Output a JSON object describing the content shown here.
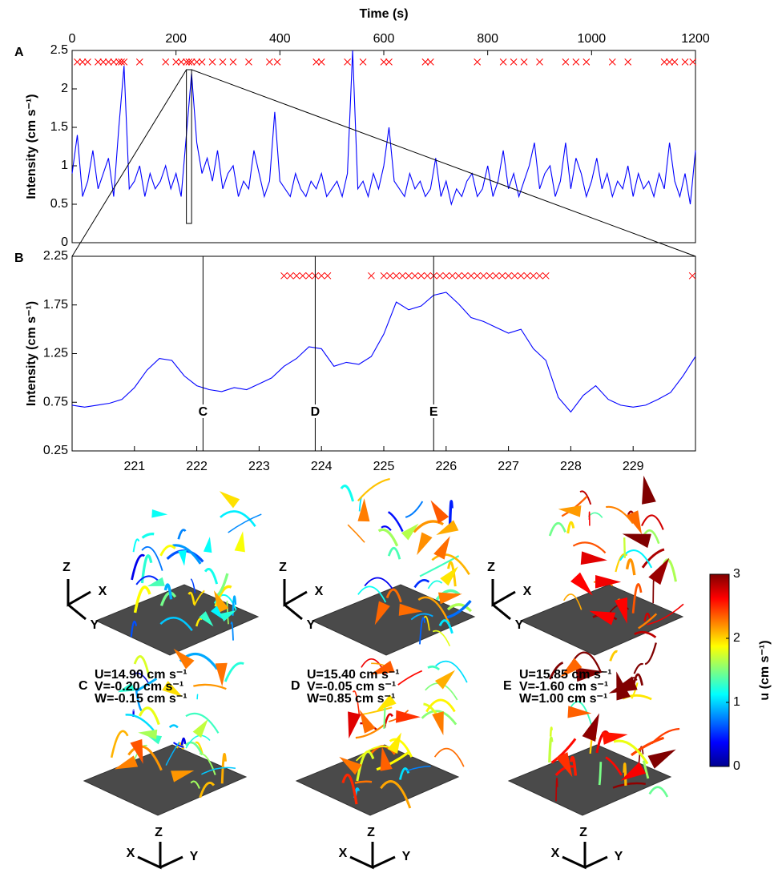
{
  "chart_data": [
    {
      "type": "line",
      "panel_label": "A",
      "xlabel": "Time (s)",
      "ylabel": "Intensity (cm s⁻¹)",
      "xlim": [
        0,
        1200
      ],
      "xticks": [
        0,
        200,
        400,
        600,
        800,
        1000,
        1200
      ],
      "ylim": [
        0,
        2.5
      ],
      "yticks": [
        0,
        0.5,
        1,
        1.5,
        2,
        2.5
      ],
      "zoom_box": {
        "x": [
          220,
          230
        ],
        "y": [
          0.25,
          2.25
        ]
      },
      "series": [
        {
          "type": "line",
          "color": "#0000ff",
          "x": [
            0,
            10,
            20,
            30,
            40,
            50,
            60,
            70,
            80,
            90,
            100,
            110,
            120,
            130,
            140,
            150,
            160,
            170,
            180,
            190,
            200,
            210,
            220,
            230,
            240,
            250,
            260,
            270,
            280,
            290,
            300,
            310,
            320,
            330,
            340,
            350,
            360,
            370,
            380,
            390,
            400,
            410,
            420,
            430,
            440,
            450,
            460,
            470,
            480,
            490,
            500,
            510,
            520,
            530,
            540,
            550,
            560,
            570,
            580,
            590,
            600,
            610,
            620,
            630,
            640,
            650,
            660,
            670,
            680,
            690,
            700,
            710,
            720,
            730,
            740,
            750,
            760,
            770,
            780,
            790,
            800,
            810,
            820,
            830,
            840,
            850,
            860,
            870,
            880,
            890,
            900,
            910,
            920,
            930,
            940,
            950,
            960,
            970,
            980,
            990,
            1000,
            1010,
            1020,
            1030,
            1040,
            1050,
            1060,
            1070,
            1080,
            1090,
            1100,
            1110,
            1120,
            1130,
            1140,
            1150,
            1160,
            1170,
            1180,
            1190,
            1200
          ],
          "values": [
            0.9,
            1.4,
            0.6,
            0.8,
            1.2,
            0.7,
            0.9,
            1.1,
            0.6,
            1.5,
            2.3,
            0.7,
            0.8,
            1.0,
            0.6,
            0.9,
            0.7,
            0.8,
            1.0,
            0.7,
            0.9,
            0.6,
            1.4,
            2.2,
            1.3,
            0.9,
            1.1,
            0.8,
            1.2,
            0.7,
            0.9,
            1.0,
            0.6,
            0.8,
            0.7,
            1.2,
            0.9,
            0.6,
            0.8,
            1.7,
            0.8,
            0.7,
            0.6,
            0.9,
            0.7,
            0.6,
            0.8,
            0.7,
            0.9,
            0.6,
            0.7,
            0.8,
            0.6,
            0.9,
            2.5,
            0.7,
            0.8,
            0.6,
            0.9,
            0.7,
            1.0,
            1.5,
            0.8,
            0.7,
            0.6,
            0.9,
            0.7,
            0.8,
            0.6,
            0.7,
            1.1,
            0.6,
            0.8,
            0.5,
            0.7,
            0.6,
            0.8,
            0.9,
            0.6,
            0.7,
            1.0,
            0.6,
            0.8,
            1.2,
            0.7,
            0.9,
            0.6,
            0.8,
            1.0,
            1.3,
            0.7,
            0.9,
            1.0,
            0.6,
            0.8,
            1.3,
            0.7,
            1.1,
            0.9,
            0.6,
            0.8,
            1.1,
            0.7,
            0.9,
            0.6,
            0.8,
            0.7,
            1.0,
            0.6,
            0.9,
            0.7,
            0.8,
            0.6,
            0.9,
            0.7,
            1.3,
            0.8,
            0.6,
            0.9,
            0.5,
            1.2
          ]
        },
        {
          "type": "scatter",
          "color": "#ff0000",
          "x": [
            10,
            20,
            30,
            50,
            60,
            70,
            80,
            90,
            95,
            100,
            130,
            180,
            200,
            210,
            220,
            225,
            230,
            240,
            250,
            270,
            290,
            310,
            340,
            380,
            395,
            470,
            480,
            530,
            560,
            600,
            610,
            680,
            690,
            780,
            830,
            850,
            870,
            900,
            950,
            970,
            990,
            1040,
            1070,
            1140,
            1150,
            1160,
            1180,
            1195
          ],
          "values": [
            2.35,
            2.35,
            2.35,
            2.35,
            2.35,
            2.35,
            2.35,
            2.35,
            2.35,
            2.35,
            2.35,
            2.35,
            2.35,
            2.35,
            2.35,
            2.35,
            2.35,
            2.35,
            2.35,
            2.35,
            2.35,
            2.35,
            2.35,
            2.35,
            2.35,
            2.35,
            2.35,
            2.35,
            2.35,
            2.35,
            2.35,
            2.35,
            2.35,
            2.35,
            2.35,
            2.35,
            2.35,
            2.35,
            2.35,
            2.35,
            2.35,
            2.35,
            2.35,
            2.35,
            2.35,
            2.35,
            2.35,
            2.35
          ]
        }
      ]
    },
    {
      "type": "line",
      "panel_label": "B",
      "ylabel": "Intensity (cm s⁻¹)",
      "xlim": [
        220,
        230
      ],
      "xticks": [
        221,
        222,
        223,
        224,
        225,
        226,
        227,
        228,
        229
      ],
      "ylim": [
        0.25,
        2.25
      ],
      "yticks": [
        0.25,
        0.75,
        1.25,
        1.75,
        2.25
      ],
      "markers": [
        {
          "label": "C",
          "x": 222.1
        },
        {
          "label": "D",
          "x": 223.9
        },
        {
          "label": "E",
          "x": 225.8
        }
      ],
      "series": [
        {
          "type": "line",
          "color": "#0000ff",
          "x": [
            220,
            220.2,
            220.4,
            220.6,
            220.8,
            221,
            221.2,
            221.4,
            221.6,
            221.8,
            222,
            222.2,
            222.4,
            222.6,
            222.8,
            223,
            223.2,
            223.4,
            223.6,
            223.8,
            224,
            224.2,
            224.4,
            224.6,
            224.8,
            225,
            225.2,
            225.4,
            225.6,
            225.8,
            226,
            226.2,
            226.4,
            226.6,
            226.8,
            227,
            227.2,
            227.4,
            227.6,
            227.8,
            228,
            228.2,
            228.4,
            228.6,
            228.8,
            229,
            229.2,
            229.4,
            229.6,
            229.8,
            230
          ],
          "values": [
            0.72,
            0.7,
            0.72,
            0.74,
            0.78,
            0.9,
            1.08,
            1.2,
            1.18,
            1.02,
            0.92,
            0.88,
            0.86,
            0.9,
            0.88,
            0.94,
            1.0,
            1.12,
            1.2,
            1.32,
            1.3,
            1.12,
            1.16,
            1.14,
            1.22,
            1.45,
            1.78,
            1.7,
            1.74,
            1.85,
            1.88,
            1.76,
            1.62,
            1.58,
            1.52,
            1.46,
            1.5,
            1.3,
            1.18,
            0.8,
            0.65,
            0.82,
            0.92,
            0.78,
            0.72,
            0.7,
            0.72,
            0.78,
            0.85,
            1.02,
            1.22
          ]
        },
        {
          "type": "scatter",
          "color": "#ff0000",
          "x": [
            223.4,
            223.5,
            223.6,
            223.7,
            223.8,
            223.9,
            224.0,
            224.1,
            224.8,
            225.0,
            225.1,
            225.2,
            225.3,
            225.4,
            225.5,
            225.6,
            225.7,
            225.8,
            225.9,
            226.0,
            226.1,
            226.2,
            226.3,
            226.4,
            226.5,
            226.6,
            226.7,
            226.8,
            226.9,
            227.0,
            227.1,
            227.2,
            227.3,
            227.4,
            227.5,
            227.6,
            229.95
          ],
          "values": [
            2.05,
            2.05,
            2.05,
            2.05,
            2.05,
            2.05,
            2.05,
            2.05,
            2.05,
            2.05,
            2.05,
            2.05,
            2.05,
            2.05,
            2.05,
            2.05,
            2.05,
            2.05,
            2.05,
            2.05,
            2.05,
            2.05,
            2.05,
            2.05,
            2.05,
            2.05,
            2.05,
            2.05,
            2.05,
            2.05,
            2.05,
            2.05,
            2.05,
            2.05,
            2.05,
            2.05,
            2.05
          ]
        }
      ]
    },
    {
      "type": "colorbar",
      "label": "u (cm s⁻¹)",
      "ylim": [
        0,
        3
      ],
      "yticks": [
        0,
        1,
        2,
        3
      ]
    }
  ],
  "figure": {
    "panels": [
      {
        "axes": {
          "z": "Z",
          "x": "X",
          "y": "Y"
        }
      },
      {
        "axes": {
          "z": "Z",
          "x": "X",
          "y": "Y"
        }
      },
      {
        "axes": {
          "z": "Z",
          "x": "X",
          "y": "Y"
        }
      },
      {
        "label": "C",
        "lines": [
          "U=14.90 cm s⁻¹",
          "V=-0.20 cm s⁻¹",
          "W=-0.15 cm s⁻¹"
        ],
        "axes": {
          "z": "Z",
          "x": "X",
          "y": "Y"
        }
      },
      {
        "label": "D",
        "lines": [
          "U=15.40 cm s⁻¹",
          "V=-0.05 cm s⁻¹",
          "W=0.85 cm s⁻¹"
        ],
        "axes": {
          "z": "Z",
          "x": "X",
          "y": "Y"
        }
      },
      {
        "label": "E",
        "lines": [
          "U=15.85 cm s⁻¹",
          "V=-1.60 cm s⁻¹",
          "W=1.00 cm s⁻¹"
        ],
        "axes": {
          "z": "Z",
          "x": "X",
          "y": "Y"
        }
      }
    ]
  }
}
